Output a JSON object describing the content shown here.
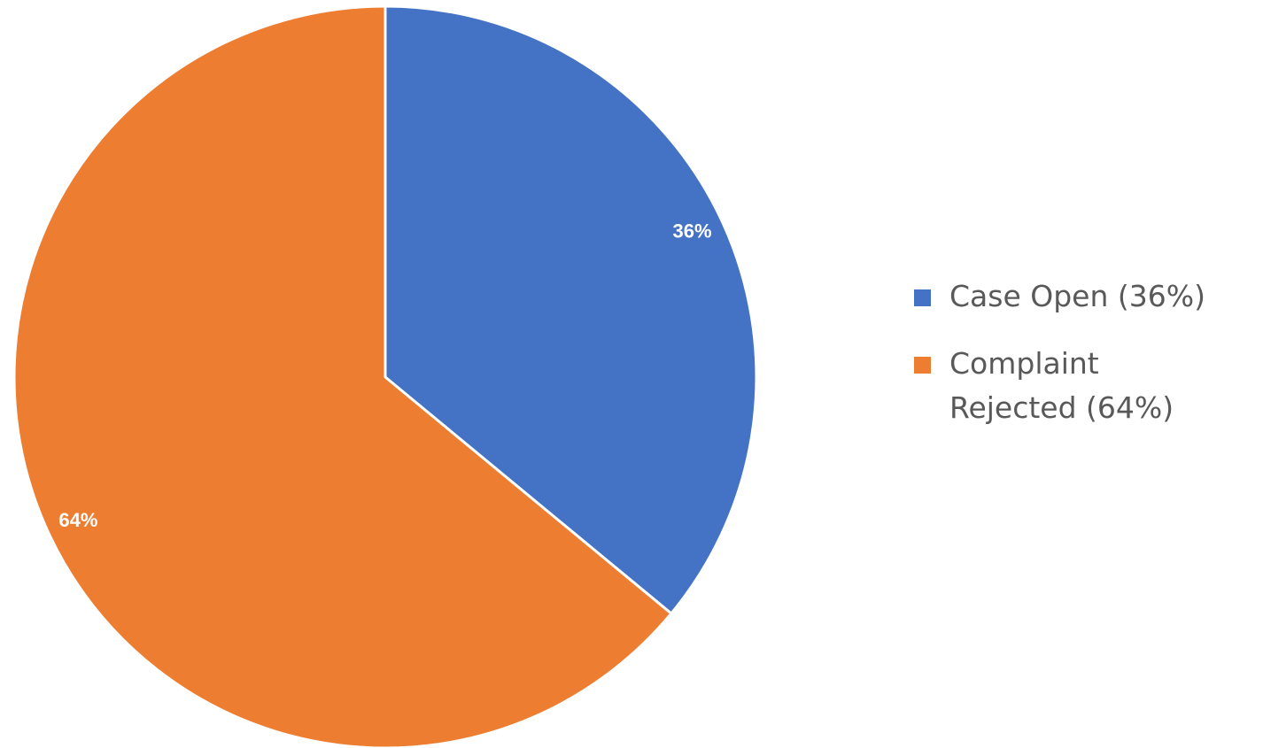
{
  "chart_data": {
    "type": "pie",
    "title": "",
    "categories": [
      "Case Open",
      "Complaint Rejected"
    ],
    "values": [
      36,
      64
    ],
    "unit": "%",
    "data_labels": [
      "36%",
      "64%"
    ],
    "legend_entries": [
      "Case Open (36%)",
      "Complaint Rejected (64%)"
    ],
    "colors": [
      "#4472C4",
      "#ED7D31"
    ],
    "start_angle": "12 o'clock",
    "direction": "clockwise",
    "legend_position": "right"
  }
}
